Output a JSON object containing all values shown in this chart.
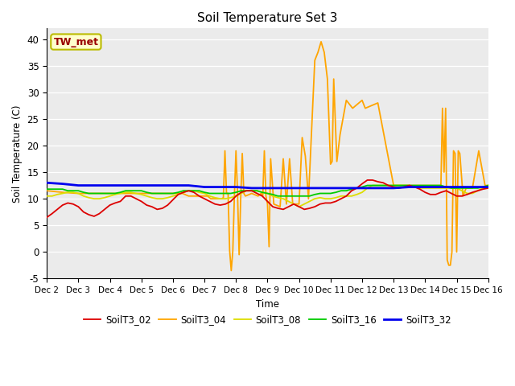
{
  "title": "Soil Temperature Set 3",
  "ylabel": "Soil Temperature (C)",
  "xlabel": "Time",
  "annotation": "TW_met",
  "ylim": [
    -5,
    42
  ],
  "xlim": [
    0,
    14
  ],
  "xtick_labels": [
    "Dec 2",
    "Dec 3",
    "Dec 4",
    "Dec 5",
    "Dec 6",
    "Dec 7",
    "Dec 8",
    "Dec 9",
    "Dec 10",
    "Dec 11",
    "Dec 12",
    "Dec 13",
    "Dec 14",
    "Dec 15",
    "Dec 16"
  ],
  "xtick_positions": [
    0,
    1,
    2,
    3,
    4,
    5,
    6,
    7,
    8,
    9,
    10,
    11,
    12,
    13,
    14
  ],
  "ytick_positions": [
    -5,
    0,
    5,
    10,
    15,
    20,
    25,
    30,
    35,
    40
  ],
  "plot_bg_color": "#ebebeb",
  "fig_bg_color": "#ffffff",
  "grid_color": "#ffffff",
  "series": {
    "SoilT3_02": {
      "color": "#dd0000",
      "linewidth": 1.3,
      "x": [
        0.0,
        0.167,
        0.333,
        0.5,
        0.667,
        0.833,
        1.0,
        1.167,
        1.333,
        1.5,
        1.667,
        1.833,
        2.0,
        2.167,
        2.333,
        2.5,
        2.667,
        2.833,
        3.0,
        3.167,
        3.333,
        3.5,
        3.667,
        3.833,
        4.0,
        4.167,
        4.333,
        4.5,
        4.667,
        4.833,
        5.0,
        5.167,
        5.333,
        5.5,
        5.667,
        5.833,
        6.0,
        6.167,
        6.333,
        6.5,
        6.667,
        6.833,
        7.0,
        7.167,
        7.333,
        7.5,
        7.667,
        7.833,
        8.0,
        8.167,
        8.333,
        8.5,
        8.667,
        8.833,
        9.0,
        9.167,
        9.333,
        9.5,
        9.667,
        9.833,
        10.0,
        10.167,
        10.333,
        10.5,
        10.667,
        10.833,
        11.0,
        11.167,
        11.333,
        11.5,
        11.667,
        11.833,
        12.0,
        12.167,
        12.333,
        12.5,
        12.667,
        12.833,
        13.0,
        13.167,
        13.333,
        13.5,
        13.667,
        13.833,
        14.0
      ],
      "y": [
        6.5,
        7.2,
        8.0,
        8.8,
        9.2,
        9.0,
        8.5,
        7.5,
        7.0,
        6.7,
        7.2,
        8.0,
        8.8,
        9.2,
        9.5,
        10.5,
        10.5,
        10.0,
        9.5,
        8.8,
        8.5,
        8.0,
        8.2,
        8.8,
        9.8,
        10.8,
        11.2,
        11.5,
        11.2,
        10.5,
        10.0,
        9.5,
        9.0,
        8.8,
        9.0,
        9.5,
        10.5,
        11.2,
        11.5,
        11.5,
        11.0,
        10.5,
        9.5,
        8.5,
        8.2,
        8.0,
        8.5,
        9.0,
        8.5,
        8.0,
        8.2,
        8.5,
        9.0,
        9.2,
        9.2,
        9.5,
        10.0,
        10.5,
        11.5,
        12.0,
        12.8,
        13.5,
        13.5,
        13.2,
        13.0,
        12.5,
        12.2,
        12.0,
        12.2,
        12.5,
        12.2,
        11.8,
        11.2,
        10.8,
        10.8,
        11.2,
        11.5,
        11.0,
        10.5,
        10.5,
        10.8,
        11.2,
        11.5,
        11.8,
        12.0
      ]
    },
    "SoilT3_04": {
      "color": "#ffa500",
      "linewidth": 1.3,
      "x": [
        0.0,
        0.5,
        1.0,
        1.5,
        2.0,
        2.5,
        3.0,
        3.5,
        4.0,
        4.3,
        4.5,
        4.55,
        4.6,
        4.7,
        4.8,
        4.85,
        4.9,
        5.0,
        5.1,
        5.2,
        5.4,
        5.5,
        5.55,
        5.6,
        5.65,
        5.7,
        5.75,
        5.8,
        5.85,
        5.9,
        5.95,
        6.0,
        6.05,
        6.1,
        6.15,
        6.2,
        6.25,
        6.3,
        6.5,
        6.7,
        6.8,
        6.85,
        6.9,
        6.95,
        7.0,
        7.05,
        7.1,
        7.2,
        7.4,
        7.5,
        7.6,
        7.7,
        7.8,
        7.9,
        8.0,
        8.1,
        8.2,
        8.3,
        8.5,
        8.6,
        8.7,
        8.8,
        8.9,
        9.0,
        9.05,
        9.1,
        9.2,
        9.3,
        9.5,
        9.7,
        9.8,
        9.9,
        10.0,
        10.1,
        10.5,
        11.0,
        11.5,
        12.0,
        12.5,
        12.55,
        12.6,
        12.65,
        12.7,
        12.75,
        12.8,
        12.85,
        12.9,
        12.95,
        13.0,
        13.05,
        13.1,
        13.2,
        13.3,
        13.5,
        13.7,
        13.9,
        14.0
      ],
      "y": [
        11.5,
        11.2,
        11.0,
        11.0,
        11.0,
        11.0,
        11.0,
        11.0,
        11.0,
        11.0,
        10.5,
        10.5,
        10.5,
        10.5,
        10.5,
        10.5,
        10.5,
        10.5,
        10.5,
        10.0,
        10.0,
        10.0,
        10.0,
        10.2,
        19.0,
        11.0,
        11.0,
        0.2,
        -3.5,
        0.2,
        10.5,
        19.0,
        11.0,
        -0.5,
        10.0,
        18.5,
        11.0,
        10.5,
        11.0,
        10.5,
        11.0,
        10.5,
        19.0,
        10.5,
        9.0,
        1.0,
        17.5,
        9.0,
        8.5,
        17.5,
        9.0,
        17.5,
        9.0,
        9.0,
        9.0,
        21.5,
        18.0,
        10.0,
        36.0,
        37.5,
        39.5,
        37.5,
        32.5,
        16.5,
        17.0,
        32.5,
        17.0,
        22.0,
        28.5,
        27.0,
        27.5,
        28.0,
        28.5,
        27.0,
        28.0,
        12.5,
        12.5,
        12.5,
        12.5,
        27.0,
        15.0,
        27.0,
        -1.5,
        -2.5,
        -2.5,
        0.0,
        19.0,
        18.5,
        0.0,
        19.0,
        18.5,
        10.5,
        12.0,
        12.0,
        19.0,
        12.5,
        12.5
      ]
    },
    "SoilT3_08": {
      "color": "#dddd00",
      "linewidth": 1.3,
      "x": [
        0.0,
        0.167,
        0.333,
        0.5,
        0.667,
        0.833,
        1.0,
        1.167,
        1.333,
        1.5,
        1.667,
        1.833,
        2.0,
        2.167,
        2.333,
        2.5,
        2.667,
        2.833,
        3.0,
        3.167,
        3.333,
        3.5,
        3.667,
        3.833,
        4.0,
        4.167,
        4.333,
        4.5,
        4.667,
        4.833,
        5.0,
        5.167,
        5.333,
        5.5,
        5.667,
        5.833,
        6.0,
        6.167,
        6.333,
        6.5,
        6.667,
        6.833,
        7.0,
        7.167,
        7.333,
        7.5,
        7.667,
        7.833,
        8.0,
        8.167,
        8.333,
        8.5,
        8.667,
        8.833,
        9.0,
        9.167,
        9.333,
        9.5,
        9.667,
        9.833,
        10.0,
        10.167,
        10.333,
        10.5,
        10.667,
        10.833,
        11.0,
        11.167,
        11.333,
        11.5,
        11.667,
        11.833,
        12.0,
        12.167,
        12.333,
        12.5,
        12.667,
        12.833,
        13.0,
        13.167,
        13.333,
        13.5,
        13.667,
        13.833,
        14.0
      ],
      "y": [
        10.5,
        10.5,
        10.8,
        11.0,
        11.2,
        11.2,
        11.0,
        10.5,
        10.2,
        10.0,
        10.0,
        10.2,
        10.5,
        10.8,
        11.0,
        11.2,
        11.2,
        11.0,
        10.8,
        10.5,
        10.2,
        10.0,
        10.0,
        10.2,
        10.5,
        10.8,
        11.2,
        11.5,
        11.5,
        11.2,
        11.0,
        10.5,
        10.2,
        10.0,
        10.0,
        10.2,
        10.5,
        11.0,
        11.5,
        11.5,
        11.5,
        11.2,
        11.0,
        10.5,
        10.2,
        10.0,
        9.5,
        9.0,
        8.5,
        9.0,
        9.5,
        10.0,
        10.2,
        10.0,
        10.0,
        10.2,
        10.5,
        10.5,
        10.5,
        10.8,
        11.2,
        12.0,
        12.5,
        12.5,
        12.5,
        12.5,
        12.5,
        12.5,
        12.5,
        12.5,
        12.2,
        12.0,
        12.0,
        12.0,
        12.0,
        12.0,
        12.0,
        12.0,
        12.0,
        11.5,
        11.0,
        11.0,
        11.5,
        12.0,
        12.5
      ]
    },
    "SoilT3_16": {
      "color": "#00cc00",
      "linewidth": 1.3,
      "x": [
        0.0,
        0.167,
        0.333,
        0.5,
        0.667,
        0.833,
        1.0,
        1.167,
        1.333,
        1.5,
        1.667,
        1.833,
        2.0,
        2.167,
        2.333,
        2.5,
        2.667,
        2.833,
        3.0,
        3.167,
        3.333,
        3.5,
        3.667,
        3.833,
        4.0,
        4.167,
        4.333,
        4.5,
        4.667,
        4.833,
        5.0,
        5.167,
        5.333,
        5.5,
        5.667,
        5.833,
        6.0,
        6.167,
        6.333,
        6.5,
        6.667,
        6.833,
        7.0,
        7.167,
        7.333,
        7.5,
        7.667,
        7.833,
        8.0,
        8.167,
        8.333,
        8.5,
        8.667,
        8.833,
        9.0,
        9.167,
        9.333,
        9.5,
        9.667,
        9.833,
        10.0,
        10.167,
        10.333,
        10.5,
        10.667,
        10.833,
        11.0,
        11.167,
        11.333,
        11.5,
        11.667,
        11.833,
        12.0,
        12.167,
        12.333,
        12.5,
        12.667,
        12.833,
        13.0,
        13.167,
        13.333,
        13.5,
        13.667,
        13.833,
        14.0
      ],
      "y": [
        11.8,
        11.8,
        11.8,
        11.8,
        11.5,
        11.5,
        11.5,
        11.2,
        11.0,
        11.0,
        11.0,
        11.0,
        11.0,
        11.0,
        11.2,
        11.5,
        11.5,
        11.5,
        11.5,
        11.2,
        11.0,
        11.0,
        11.0,
        11.0,
        11.0,
        11.2,
        11.5,
        11.5,
        11.5,
        11.5,
        11.2,
        11.0,
        11.0,
        11.0,
        11.0,
        11.0,
        11.2,
        11.5,
        11.5,
        11.5,
        11.5,
        11.2,
        11.0,
        10.8,
        10.5,
        10.5,
        10.5,
        10.5,
        10.5,
        10.5,
        10.5,
        10.8,
        11.0,
        11.0,
        11.0,
        11.2,
        11.5,
        11.5,
        11.8,
        12.0,
        12.2,
        12.5,
        12.5,
        12.5,
        12.5,
        12.5,
        12.5,
        12.5,
        12.5,
        12.5,
        12.5,
        12.5,
        12.5,
        12.5,
        12.5,
        12.5,
        12.2,
        12.0,
        12.0,
        12.0,
        12.0,
        12.0,
        12.0,
        12.2,
        12.5
      ]
    },
    "SoilT3_32": {
      "color": "#0000ee",
      "linewidth": 2.0,
      "x": [
        0.0,
        0.5,
        1.0,
        1.5,
        2.0,
        2.5,
        3.0,
        3.5,
        4.0,
        4.5,
        5.0,
        5.5,
        6.0,
        6.5,
        7.0,
        7.5,
        8.0,
        8.5,
        9.0,
        9.5,
        10.0,
        10.5,
        11.0,
        11.5,
        12.0,
        12.5,
        13.0,
        13.5,
        14.0
      ],
      "y": [
        13.0,
        12.8,
        12.5,
        12.5,
        12.5,
        12.5,
        12.5,
        12.5,
        12.5,
        12.5,
        12.2,
        12.2,
        12.2,
        12.0,
        12.0,
        12.0,
        12.0,
        12.0,
        12.0,
        12.0,
        12.0,
        12.0,
        12.0,
        12.2,
        12.2,
        12.2,
        12.2,
        12.2,
        12.2
      ]
    }
  },
  "legend_entries": [
    "SoilT3_02",
    "SoilT3_04",
    "SoilT3_08",
    "SoilT3_16",
    "SoilT3_32"
  ],
  "legend_colors": [
    "#dd0000",
    "#ffa500",
    "#dddd00",
    "#00cc00",
    "#0000ee"
  ]
}
